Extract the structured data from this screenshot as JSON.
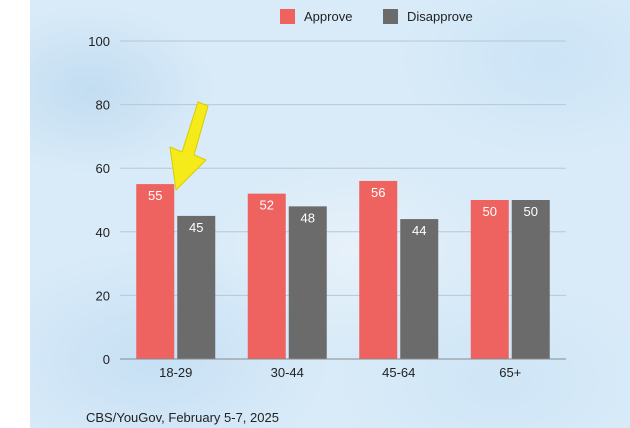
{
  "chart_data": {
    "type": "bar",
    "categories": [
      "18-29",
      "30-44",
      "45-64",
      "65+"
    ],
    "series": [
      {
        "name": "Approve",
        "values": [
          55,
          52,
          56,
          50
        ],
        "color": "#ee6360"
      },
      {
        "name": "Disapprove",
        "values": [
          45,
          48,
          44,
          50
        ],
        "color": "#6b6b6b"
      }
    ],
    "yticks": [
      "0",
      "20",
      "40",
      "60",
      "80",
      "100"
    ],
    "ylim": [
      0,
      100
    ],
    "grid": true,
    "legend_position": "top",
    "annotation": {
      "type": "arrow",
      "color": "#f5ea1a",
      "points_to": "18-29"
    }
  },
  "source_note": "CBS/YouGov, February 5-7, 2025"
}
